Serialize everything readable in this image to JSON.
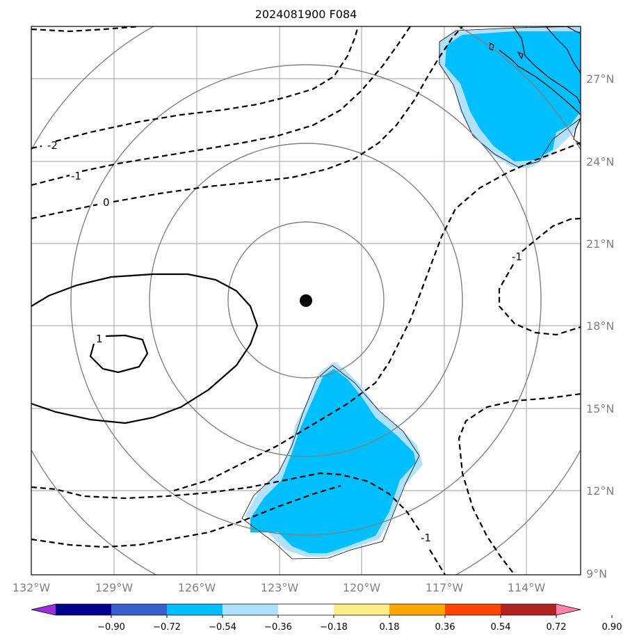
{
  "title": "2024081900 F084",
  "map": {
    "lon_ticks": [
      "132°W",
      "129°W",
      "126°W",
      "123°W",
      "120°W",
      "117°W",
      "114°W"
    ],
    "lat_ticks": [
      "27°N",
      "24°N",
      "21°N",
      "18°N",
      "15°N",
      "12°N",
      "9°N"
    ],
    "lon_range": [
      -132,
      -112
    ],
    "lat_range": [
      9,
      29
    ],
    "center": {
      "lon": -122,
      "lat": 19
    },
    "gridlines": true
  },
  "contour_labels": {
    "neg2": "-2",
    "neg1a": "-1",
    "zero": "0",
    "pos1": "1",
    "neg1b": "-1",
    "neg1c": "-1"
  },
  "colorbar": {
    "ticks": [
      "−0.90",
      "−0.72",
      "−0.54",
      "−0.36",
      "−0.18",
      "0.18",
      "0.36",
      "0.54",
      "0.72",
      "0.90"
    ],
    "colors": [
      "#9b30d9",
      "#00008b",
      "#3a5fcd",
      "#00bfff",
      "#b0e2ff",
      "#ffffff",
      "#ffec8b",
      "#ffa500",
      "#ff4500",
      "#b22222",
      "#ff82ab"
    ]
  },
  "colors": {
    "fill_main": "#00bfff",
    "fill_light": "#b0e2ff",
    "range_rings": "#808080",
    "center_marker": "#000000"
  }
}
